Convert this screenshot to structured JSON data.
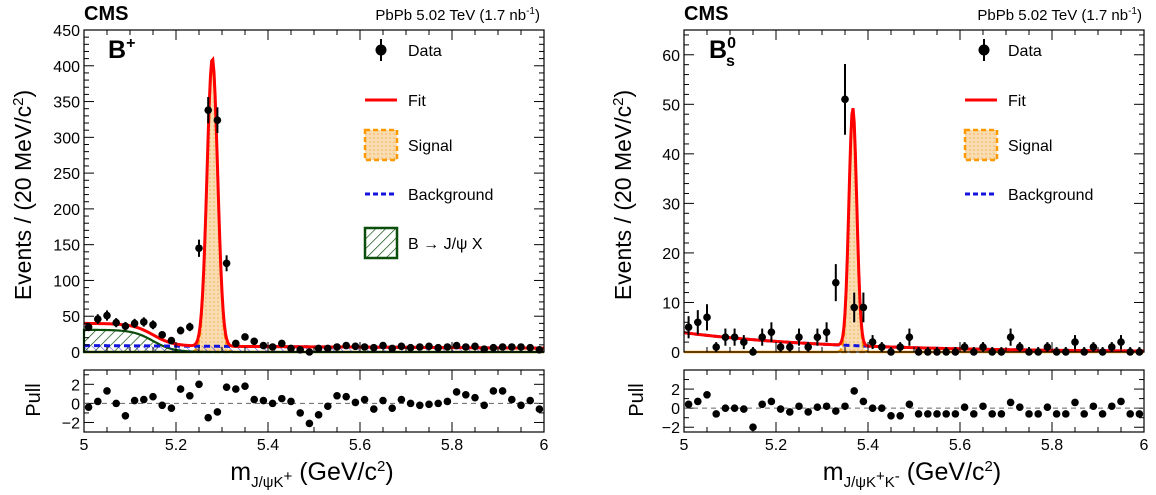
{
  "colors": {
    "fit": "#ff0000",
    "signal_line": "#ff9900",
    "signal_fill": "#f9dcb1",
    "background": "#1414dc",
    "partial": "#0b4d0b",
    "data": "#000000"
  },
  "chart_data": [
    {
      "type": "scatter",
      "header": {
        "experiment": "CMS",
        "energy": "PbPb 5.02 TeV (1.7 nb",
        "energy_sup": "-1",
        "energy_close": ")"
      },
      "tag": {
        "main": "B",
        "sup": "+"
      },
      "ylabel": "Events / (20 MeV/c",
      "ylabel_sup": "2",
      "ylabel_close": ")",
      "xlabel": {
        "main": "m",
        "sub": "J/ψK",
        "sub_sup": "+",
        "unit": " (GeV/c",
        "unit_sup": "2",
        "close": ")"
      },
      "pull_label": "Pull",
      "xlim": [
        5,
        6
      ],
      "ylim": [
        0,
        450
      ],
      "pull_ylim": [
        -3,
        3.5
      ],
      "xticks": [
        "5",
        "5.2",
        "5.4",
        "5.6",
        "5.8",
        "6"
      ],
      "yticks": [
        "0",
        "50",
        "100",
        "150",
        "200",
        "250",
        "300",
        "350",
        "400",
        "450"
      ],
      "pull_yticks": [
        "−2",
        "0",
        "2"
      ],
      "legend": {
        "data": "Data",
        "fit": "Fit",
        "signal": "Signal",
        "background": "Background",
        "partial": "B → J/ψ X"
      },
      "fit_model": {
        "signal": {
          "amp": 402,
          "mean": 5.279,
          "sigma": 0.0115
        },
        "background": {
          "level": 9,
          "slope": 0.4
        },
        "partial": {
          "amp": 31,
          "center": 5.08,
          "edge": 5.15,
          "width": 0.022
        }
      },
      "data_x": [
        5.01,
        5.03,
        5.05,
        5.07,
        5.09,
        5.11,
        5.13,
        5.15,
        5.17,
        5.19,
        5.21,
        5.23,
        5.25,
        5.27,
        5.29,
        5.31,
        5.33,
        5.35,
        5.37,
        5.39,
        5.41,
        5.43,
        5.45,
        5.47,
        5.49,
        5.51,
        5.53,
        5.55,
        5.57,
        5.59,
        5.61,
        5.63,
        5.65,
        5.67,
        5.69,
        5.71,
        5.73,
        5.75,
        5.77,
        5.79,
        5.81,
        5.83,
        5.85,
        5.87,
        5.89,
        5.91,
        5.93,
        5.95,
        5.97,
        5.99
      ],
      "data_y": [
        35,
        46,
        51,
        41,
        36,
        40,
        42,
        38,
        24,
        16,
        30,
        35,
        145,
        338,
        324,
        124,
        12,
        21,
        15,
        9,
        7,
        12,
        5,
        3,
        0,
        5,
        5,
        7,
        9,
        8,
        7,
        6,
        9,
        5,
        8,
        6,
        7,
        8,
        6,
        7,
        9,
        7,
        8,
        4,
        6,
        7,
        7,
        7,
        6,
        3
      ],
      "pull_y": [
        -0.4,
        0.2,
        1.3,
        0.0,
        -1.3,
        0.3,
        0.4,
        0.7,
        -0.2,
        -0.5,
        1.5,
        0.8,
        2.0,
        -1.5,
        -0.9,
        1.7,
        1.5,
        1.8,
        0.4,
        0.3,
        0.0,
        0.5,
        0.2,
        -1.0,
        -2.1,
        -1.2,
        -0.3,
        0.8,
        0.7,
        0.1,
        0.4,
        -0.6,
        0.3,
        -0.5,
        0.4,
        0.0,
        -0.2,
        -0.1,
        0.0,
        0.2,
        1.2,
        0.9,
        0.6,
        -0.2,
        1.3,
        1.3,
        0.4,
        -0.2,
        0.3,
        -0.6
      ]
    },
    {
      "type": "scatter",
      "header": {
        "experiment": "CMS",
        "energy": "PbPb 5.02 TeV (1.7 nb",
        "energy_sup": "-1",
        "energy_close": ")"
      },
      "tag": {
        "main": "B",
        "sub": "s",
        "sup": "0"
      },
      "ylabel": "Events / (20 MeV/c",
      "ylabel_sup": "2",
      "ylabel_close": ")",
      "xlabel": {
        "main": "m",
        "sub": "J/ψK",
        "sub_sup": "+",
        "sub2": "K",
        "sub2_sup": "-",
        "unit": " (GeV/c",
        "unit_sup": "2",
        "close": ")"
      },
      "pull_label": "Pull",
      "xlim": [
        5,
        6
      ],
      "ylim": [
        0,
        65
      ],
      "pull_ylim": [
        -2.5,
        4
      ],
      "xticks": [
        "5",
        "5.2",
        "5.4",
        "5.6",
        "5.8",
        "6"
      ],
      "yticks": [
        "0",
        "10",
        "20",
        "30",
        "40",
        "50",
        "60"
      ],
      "pull_yticks": [
        "−2",
        "0",
        "2"
      ],
      "legend": {
        "data": "Data",
        "fit": "Fit",
        "signal": "Signal",
        "background": "Background"
      },
      "fit_model": {
        "signal": {
          "amp": 48,
          "mean": 5.367,
          "sigma": 0.0085
        },
        "background": {
          "a": 3.9,
          "decay": 3.0
        }
      },
      "data_x": [
        5.01,
        5.03,
        5.05,
        5.07,
        5.09,
        5.11,
        5.13,
        5.15,
        5.17,
        5.19,
        5.21,
        5.23,
        5.25,
        5.27,
        5.29,
        5.31,
        5.33,
        5.35,
        5.37,
        5.39,
        5.41,
        5.43,
        5.45,
        5.47,
        5.49,
        5.51,
        5.53,
        5.55,
        5.57,
        5.59,
        5.61,
        5.63,
        5.65,
        5.67,
        5.69,
        5.71,
        5.73,
        5.75,
        5.77,
        5.79,
        5.81,
        5.83,
        5.85,
        5.87,
        5.89,
        5.91,
        5.93,
        5.95,
        5.97,
        5.99
      ],
      "data_y": [
        5,
        6,
        7,
        1,
        3,
        3,
        2,
        0,
        3,
        4,
        1,
        1,
        3,
        1,
        3,
        4,
        14,
        51,
        9,
        9,
        2,
        1,
        0,
        1,
        3,
        0,
        0,
        0,
        0,
        0,
        1,
        0,
        1,
        0,
        0,
        3,
        1,
        0,
        0,
        1,
        0,
        0,
        2,
        0,
        1,
        0,
        1,
        2,
        0,
        0
      ],
      "pull_y": [
        0.4,
        0.7,
        1.4,
        -0.6,
        0.0,
        0.0,
        -0.1,
        -2.0,
        0.4,
        0.7,
        -0.1,
        -0.4,
        0.2,
        -0.4,
        0.1,
        0.2,
        -0.3,
        0.2,
        1.8,
        0.7,
        0.0,
        0.0,
        -0.8,
        -0.8,
        0.4,
        -0.6,
        -0.6,
        -0.6,
        -0.6,
        -0.6,
        0.1,
        -0.6,
        0.2,
        -0.6,
        -0.6,
        0.6,
        0.1,
        -0.6,
        -0.6,
        0.1,
        -0.6,
        -0.6,
        0.6,
        -0.6,
        0.2,
        -0.6,
        0.2,
        0.7,
        -0.6,
        -0.6
      ]
    }
  ]
}
